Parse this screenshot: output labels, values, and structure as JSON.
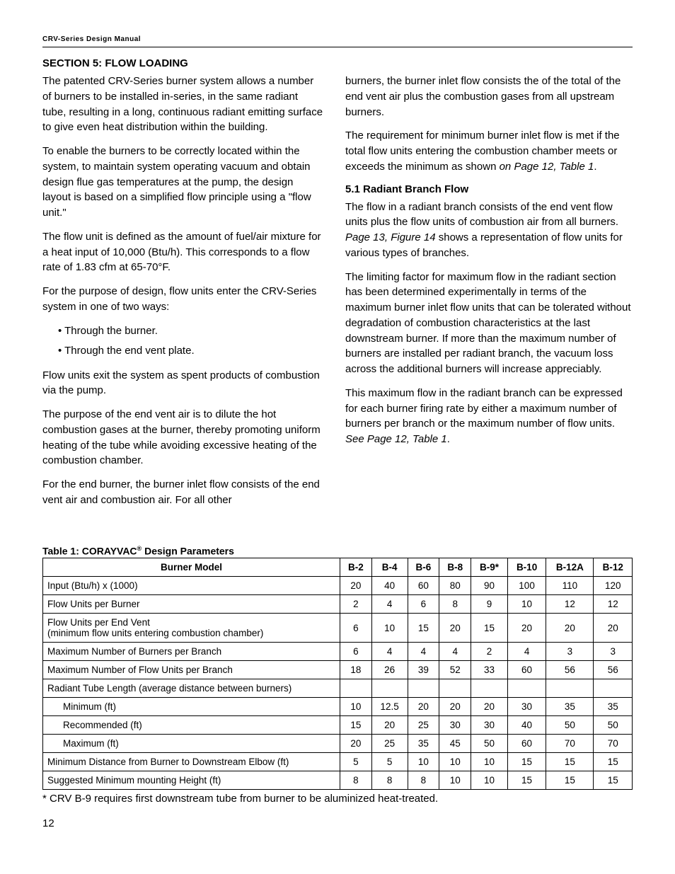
{
  "header": {
    "text": "CRV-Series Design Manual"
  },
  "section_title": "SECTION 5: FLOW LOADING",
  "left_col": {
    "p1": "The patented CRV-Series burner system allows a number of burners to be installed in-series, in the same radiant tube, resulting in a long, continuous radiant emitting surface to give even heat distribution within the building.",
    "p2": "To enable the burners to be correctly located within the system, to maintain system operating vacuum and obtain design flue gas temperatures at the pump, the design layout is based on a simplified flow principle using a \"flow unit.\"",
    "p3": "The flow unit is defined as the amount of fuel/air mixture for a heat input of 10,000 (Btu/h). This corresponds to a flow rate of 1.83 cfm at 65-70°F.",
    "p4": "For the purpose of design, flow units enter the CRV-Series system in one of two ways:",
    "bullets": [
      "• Through the burner.",
      "• Through the end vent plate."
    ],
    "p5": "Flow units exit the system as spent products of combustion via the pump.",
    "p6": "The purpose of the end vent air is to dilute the hot combustion gases at the burner, thereby promoting uniform heating of the tube while avoiding excessive heating of the combustion chamber.",
    "p7": "For the end burner, the burner inlet flow consists of the end vent air and combustion air. For all other"
  },
  "right_col": {
    "p1": "burners, the burner inlet flow consists the of the total of the end vent air plus the combustion gases from all upstream burners.",
    "p2a": "The requirement for minimum burner inlet flow is met if the total flow units entering the combustion chamber meets or exceeds the minimum as shown ",
    "p2b": "on Page 12, Table 1",
    "p2c": ".",
    "sub_title": "5.1 Radiant Branch Flow",
    "p3a": "The flow in a radiant branch consists of the end vent flow units plus the flow units of combustion air from all burners. ",
    "p3b": "Page 13, Figure 14",
    "p3c": " shows a representation of flow units for various types of branches.",
    "p4": "The limiting factor for maximum flow in the radiant section has been determined experimentally in terms of the maximum burner inlet flow units that can be tolerated without degradation of combustion characteristics at the last downstream burner. If more than the maximum number of burners are installed per radiant branch, the vacuum loss across the additional burners will increase appreciably.",
    "p5a": "This maximum flow in the radiant branch can be expressed for each burner firing rate by either a maximum number of burners per branch or the maximum number of flow units. ",
    "p5b": "See Page 12, Table 1",
    "p5c": "."
  },
  "table": {
    "title_a": "Table 1: CORAYVAC",
    "title_sup": "®",
    "title_b": " Design Parameters",
    "header_label": "Burner Model",
    "models": [
      "B-2",
      "B-4",
      "B-6",
      "B-8",
      "B-9*",
      "B-10",
      "B-12A",
      "B-12"
    ],
    "rows": [
      {
        "label": "Input (Btu/h) x (1000)",
        "vals": [
          "20",
          "40",
          "60",
          "80",
          "90",
          "100",
          "110",
          "120"
        ]
      },
      {
        "label": "Flow Units per Burner",
        "vals": [
          "2",
          "4",
          "6",
          "8",
          "9",
          "10",
          "12",
          "12"
        ]
      },
      {
        "label": "Flow Units per End Vent\n(minimum flow units entering combustion chamber)",
        "vals": [
          "6",
          "10",
          "15",
          "20",
          "15",
          "20",
          "20",
          "20"
        ]
      },
      {
        "label": "Maximum Number of Burners per Branch",
        "vals": [
          "6",
          "4",
          "4",
          "4",
          "2",
          "4",
          "3",
          "3"
        ]
      },
      {
        "label": "Maximum Number of Flow Units per Branch",
        "vals": [
          "18",
          "26",
          "39",
          "52",
          "33",
          "60",
          "56",
          "56"
        ]
      },
      {
        "label": "Radiant Tube Length (average distance between burners)",
        "vals": [
          "",
          "",
          "",
          "",
          "",
          "",
          "",
          ""
        ]
      },
      {
        "label": "Minimum (ft)",
        "indent": true,
        "vals": [
          "10",
          "12.5",
          "20",
          "20",
          "20",
          "30",
          "35",
          "35"
        ]
      },
      {
        "label": "Recommended (ft)",
        "indent": true,
        "vals": [
          "15",
          "20",
          "25",
          "30",
          "30",
          "40",
          "50",
          "50"
        ]
      },
      {
        "label": "Maximum (ft)",
        "indent": true,
        "vals": [
          "20",
          "25",
          "35",
          "45",
          "50",
          "60",
          "70",
          "70"
        ]
      },
      {
        "label": "Minimum Distance from Burner to Downstream Elbow (ft)",
        "vals": [
          "5",
          "5",
          "10",
          "10",
          "10",
          "15",
          "15",
          "15"
        ]
      },
      {
        "label": "Suggested Minimum mounting Height (ft)",
        "vals": [
          "8",
          "8",
          "8",
          "10",
          "10",
          "15",
          "15",
          "15"
        ]
      }
    ]
  },
  "footnote": "* CRV B-9 requires first downstream tube from burner to be aluminized heat-treated.",
  "page_num": "12"
}
